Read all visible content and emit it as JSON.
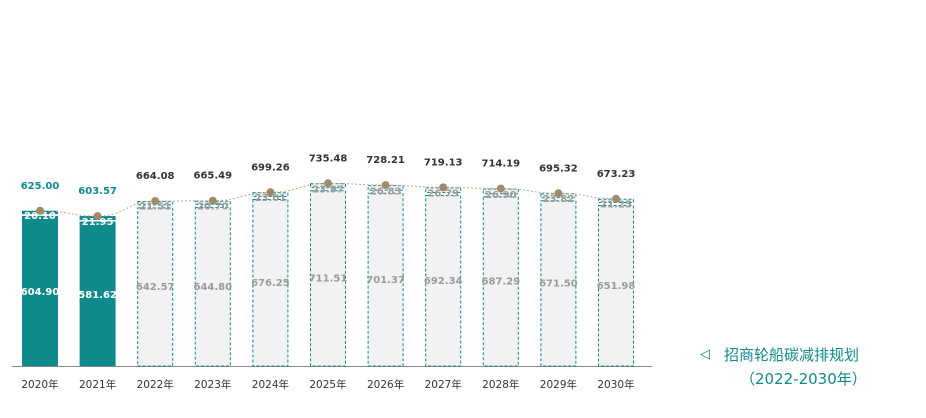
{
  "chart_data": {
    "type": "bar",
    "stacked": true,
    "categories": [
      "2020年",
      "2021年",
      "2022年",
      "2023年",
      "2024年",
      "2025年",
      "2026年",
      "2027年",
      "2028年",
      "2029年",
      "2030年"
    ],
    "series": [
      {
        "values": [
          604.9,
          581.62,
          642.57,
          644.8,
          676.25,
          711.51,
          701.37,
          692.34,
          687.29,
          671.5,
          651.98
        ]
      },
      {
        "values": [
          20.1,
          21.95,
          21.51,
          20.7,
          23.01,
          23.97,
          26.83,
          26.79,
          26.9,
          23.82,
          21.25
        ]
      }
    ],
    "totals": [
      625.0,
      603.57,
      664.08,
      665.49,
      699.26,
      735.48,
      728.21,
      719.13,
      714.19,
      695.32,
      673.23
    ],
    "bottom_labels": [
      "604.90",
      "581.62",
      "642.57",
      "644.80",
      "676.25",
      "711.51",
      "701.37",
      "692.34",
      "687.29",
      "671.50",
      "651.98"
    ],
    "top_labels": [
      "20.10",
      "21.95",
      "21.51",
      "20.70",
      "23.01",
      "23.97",
      "26.83",
      "26.79",
      "26.90",
      "23.82",
      "21.25"
    ],
    "total_labels": [
      "625.00",
      "603.57",
      "664.08",
      "665.49",
      "699.26",
      "735.48",
      "728.21",
      "719.13",
      "714.19",
      "695.32",
      "673.23"
    ],
    "actual_count": 2,
    "colors": {
      "actual": "#0f8a8c",
      "plan_fill": "#f2f2f2",
      "plan_border": "#0f8a8c",
      "dot": "#a08a6a",
      "line": "#c7a48c",
      "planned_label": "#9a9a9a",
      "total_actual": "#0f8a8c",
      "total_plan": "#333333"
    },
    "ylim": [
      0,
      760
    ]
  },
  "caption": {
    "icon": "triangle-left-icon",
    "line1": "招商轮船碳减排规划",
    "line2": "（2022-2030年）"
  }
}
